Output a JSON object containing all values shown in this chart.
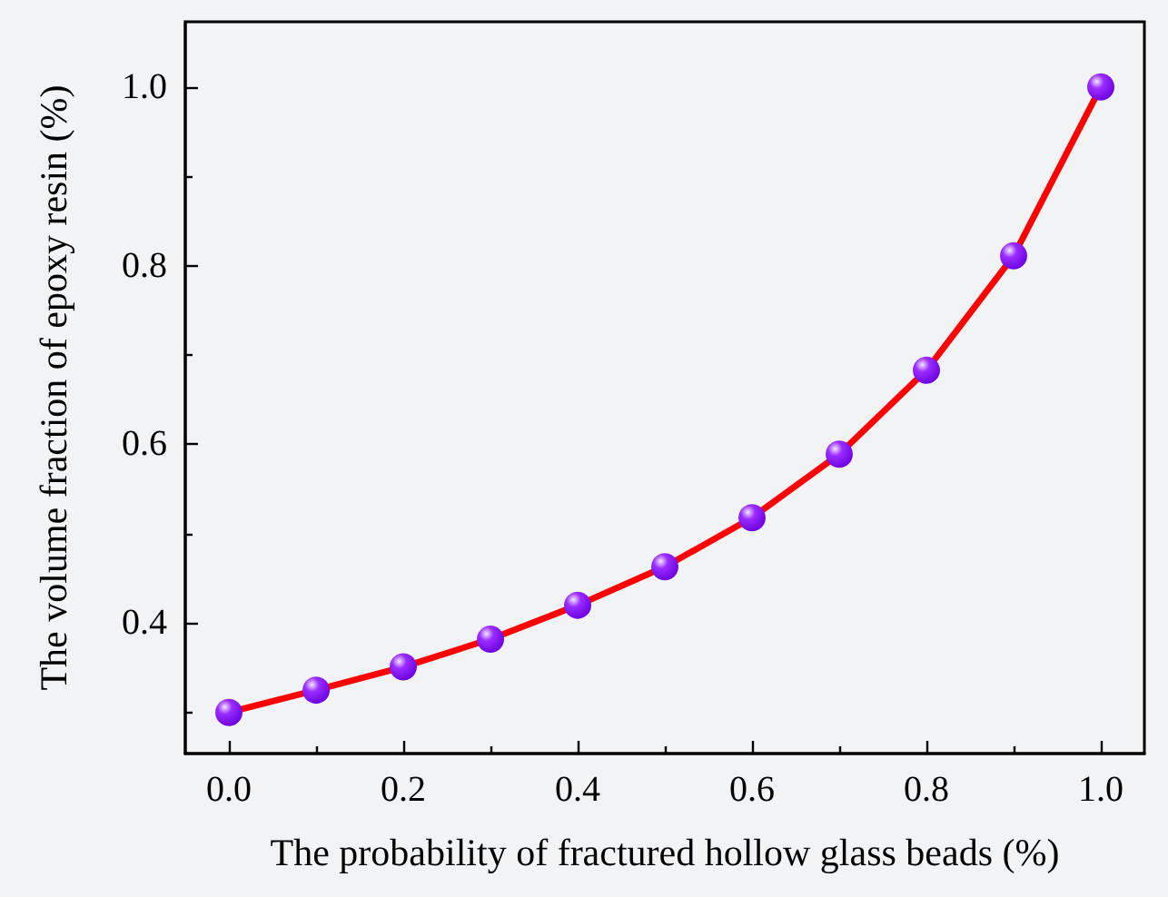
{
  "chart_data": {
    "type": "line",
    "xlabel": "The probability of fractured hollow glass beads (%)",
    "ylabel": "The volume fraction of epoxy resin (%)",
    "x": [
      0.0,
      0.1,
      0.2,
      0.3,
      0.4,
      0.5,
      0.6,
      0.7,
      0.8,
      0.9,
      1.0
    ],
    "series": [
      {
        "color": "#ff0000",
        "values": [
          0.3,
          0.325,
          0.351,
          0.382,
          0.42,
          0.463,
          0.518,
          0.589,
          0.683,
          0.811,
          1.0
        ]
      }
    ],
    "xlim": [
      -0.05,
      1.05
    ],
    "xticks": [
      {
        "value": 0,
        "label": "0.0"
      },
      {
        "value": 0.2,
        "label": "0.2"
      },
      {
        "value": 0.4,
        "label": "0.4"
      },
      {
        "value": 0.6,
        "label": "0.6"
      },
      {
        "value": 0.8,
        "label": "0.8"
      },
      {
        "value": 1,
        "label": "1.0"
      }
    ],
    "ylim": [
      0.254,
      1.073
    ],
    "yticks": [
      {
        "value": 0.4,
        "label": "0.4"
      },
      {
        "value": 0.6,
        "label": "0.6"
      },
      {
        "value": 0.8,
        "label": "0.8"
      },
      {
        "value": 1,
        "label": "1.0"
      }
    ],
    "marker": "circle",
    "line_style": "solid"
  }
}
